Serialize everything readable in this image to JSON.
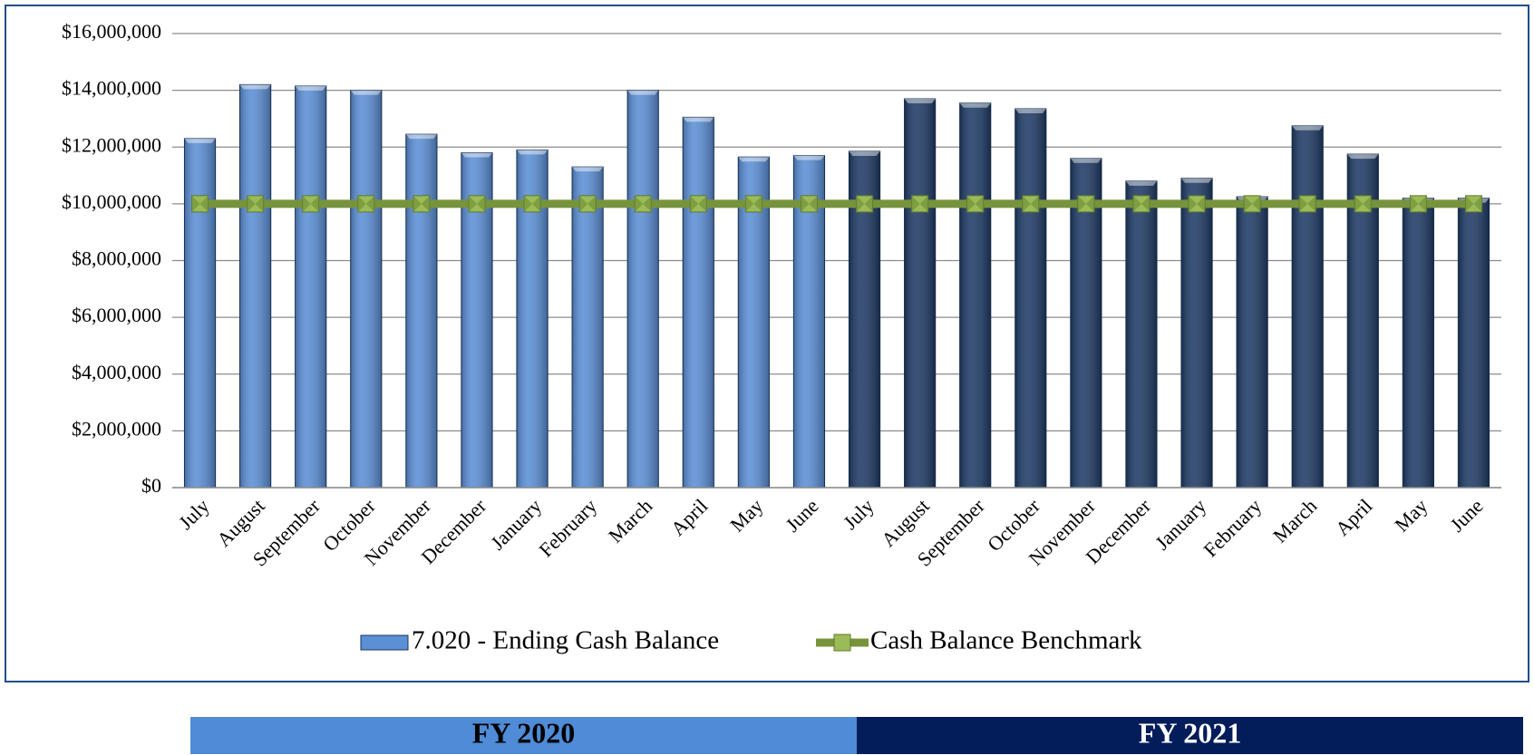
{
  "chart_data": {
    "type": "bar",
    "categories": [
      "July",
      "August",
      "September",
      "October",
      "November",
      "December",
      "January",
      "February",
      "March",
      "April",
      "May",
      "June",
      "July",
      "August",
      "September",
      "October",
      "November",
      "December",
      "January",
      "February",
      "March",
      "April",
      "May",
      "June"
    ],
    "series": [
      {
        "name": "7.020 - Ending Cash Balance",
        "type": "bar",
        "color": "#5b8fd6",
        "values": [
          12300000,
          14200000,
          14150000,
          14000000,
          12450000,
          11800000,
          11900000,
          11300000,
          14000000,
          13050000,
          11650000,
          11700000,
          11850000,
          13700000,
          13550000,
          13350000,
          11600000,
          10800000,
          10900000,
          10250000,
          12750000,
          11750000,
          10200000,
          10200000
        ]
      },
      {
        "name": "Cash Balance Benchmark",
        "type": "line",
        "color": "#77933c",
        "marker_color": "#9bbb59",
        "values": [
          10000000,
          10000000,
          10000000,
          10000000,
          10000000,
          10000000,
          10000000,
          10000000,
          10000000,
          10000000,
          10000000,
          10000000,
          10000000,
          10000000,
          10000000,
          10000000,
          10000000,
          10000000,
          10000000,
          10000000,
          10000000,
          10000000,
          10000000,
          10000000
        ]
      }
    ],
    "ylim": [
      0,
      16000000
    ],
    "yticks": [
      {
        "value": 0,
        "label": "$0"
      },
      {
        "value": 2000000,
        "label": "$2,000,000"
      },
      {
        "value": 4000000,
        "label": "$4,000,000"
      },
      {
        "value": 6000000,
        "label": "$6,000,000"
      },
      {
        "value": 8000000,
        "label": "$8,000,000"
      },
      {
        "value": 10000000,
        "label": "$10,000,000"
      },
      {
        "value": 12000000,
        "label": "$12,000,000"
      },
      {
        "value": 14000000,
        "label": "$14,000,000"
      },
      {
        "value": 16000000,
        "label": "$16,000,000"
      }
    ],
    "grid": true,
    "legend": "bottom",
    "fiscal_years": [
      {
        "label": "FY 2020",
        "count": 12,
        "color": "#4f8bd6",
        "band_color": "#4f8bd6",
        "bar_color": "#5b8fd6"
      },
      {
        "label": "FY 2021",
        "count": 12,
        "color": "#1f3b66",
        "band_color": "#031d5a",
        "bar_color": "#1f3b66"
      }
    ]
  }
}
